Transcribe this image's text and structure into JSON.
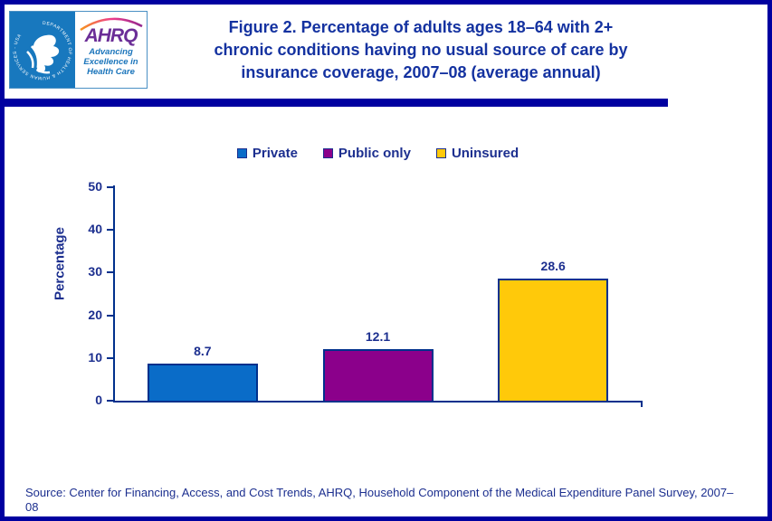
{
  "header": {
    "logo": {
      "seal_text": "DEPARTMENT OF HEALTH & HUMAN SERVICES - USA",
      "ahrq": "AHRQ",
      "tagline_lines": [
        "Advancing",
        "Excellence in",
        "Health Care"
      ]
    },
    "title_lines": [
      "Figure 2. Percentage of adults ages 18–64 with 2+",
      "chronic conditions having no usual source of care by",
      "insurance coverage, 2007–08 (average annual)"
    ]
  },
  "chart_data": {
    "type": "bar",
    "title": "Figure 2. Percentage of adults ages 18–64 with 2+ chronic conditions having no usual source of care by insurance coverage, 2007–08 (average annual)",
    "categories": [
      "Private",
      "Public only",
      "Uninsured"
    ],
    "values": [
      8.7,
      12.1,
      28.6
    ],
    "value_labels": [
      "8.7",
      "12.1",
      "28.6"
    ],
    "bar_colors": [
      "#0a6cc8",
      "#8b008b",
      "#ffc90a"
    ],
    "xlabel": "",
    "ylabel": "Percentage",
    "ylim": [
      0,
      50
    ],
    "yticks": [
      0,
      10,
      20,
      30,
      40,
      50
    ],
    "legend": [
      "Private",
      "Public only",
      "Uninsured"
    ],
    "legend_position": "top",
    "grid": false
  },
  "footer": {
    "source": "Source: Center for Financing, Access, and Cost Trends, AHRQ, Household Component of the Medical Expenditure Panel Survey, 2007–08"
  },
  "colors": {
    "border_navy": "#0000a0",
    "title_blue": "#1432a0",
    "text_navy": "#1c2f8f",
    "axis_navy": "#00308c",
    "hhs_blue": "#1878be",
    "ahrq_purple": "#6b2e97",
    "tagline_blue": "#1b75bb",
    "bar_private": "#0a6cc8",
    "bar_public_only": "#8b008b",
    "bar_uninsured": "#ffc90a"
  }
}
